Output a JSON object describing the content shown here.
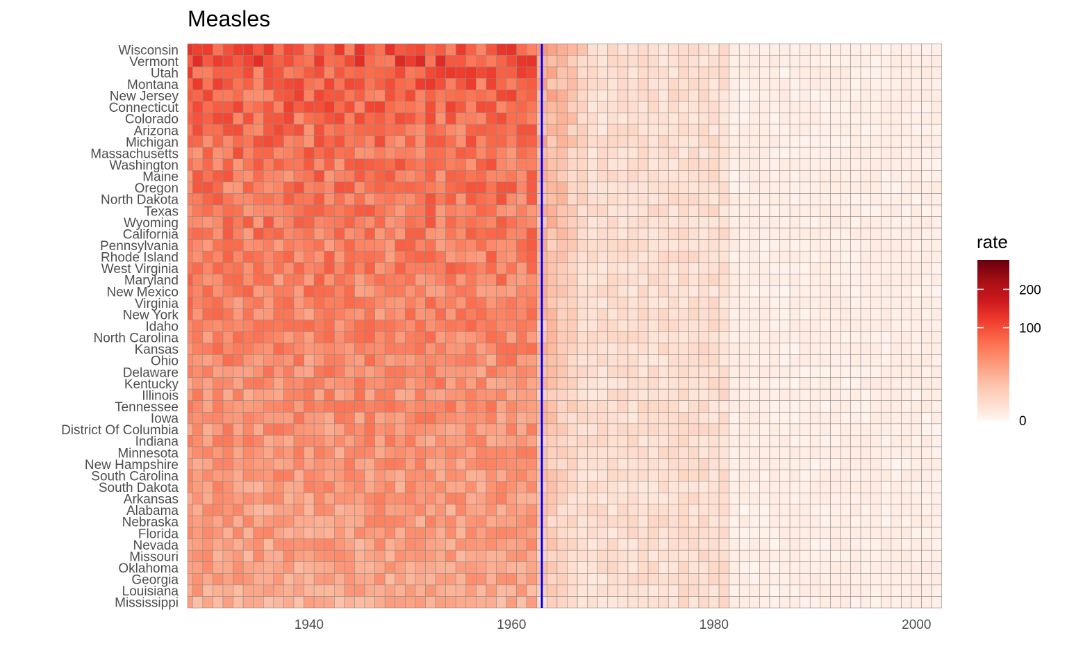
{
  "chart_data": {
    "type": "heatmap",
    "title": "Measles",
    "xlabel": "",
    "ylabel": "",
    "x_start": 1928,
    "x_end": 2002,
    "xlim": [
      1928,
      2003
    ],
    "x_ticks": [
      {
        "value": 1940,
        "label": "1940"
      },
      {
        "value": 1960,
        "label": "1960"
      },
      {
        "value": 1980,
        "label": "1980"
      },
      {
        "value": 2000,
        "label": "2000"
      }
    ],
    "vline": {
      "value": 1963,
      "color": "#0000ff"
    },
    "grid": false,
    "legend": {
      "title": "rate",
      "placement": "right",
      "max_value": 300,
      "ticks": [
        {
          "value": 0,
          "label": "0"
        },
        {
          "value": 100,
          "label": "100"
        },
        {
          "value": 200,
          "label": "200"
        }
      ],
      "colors": [
        "#fff5f0",
        "#fee0d2",
        "#fcbba1",
        "#fc9272",
        "#fb6a4a",
        "#ef3b2c",
        "#cb181d",
        "#a50f15",
        "#67000d"
      ]
    },
    "states": [
      {
        "name": "Wisconsin",
        "peak": 95
      },
      {
        "name": "Vermont",
        "peak": 100
      },
      {
        "name": "Utah",
        "peak": 88
      },
      {
        "name": "Montana",
        "peak": 85
      },
      {
        "name": "New Jersey",
        "peak": 80
      },
      {
        "name": "Connecticut",
        "peak": 78
      },
      {
        "name": "Colorado",
        "peak": 75
      },
      {
        "name": "Arizona",
        "peak": 72
      },
      {
        "name": "Michigan",
        "peak": 72
      },
      {
        "name": "Massachusetts",
        "peak": 70
      },
      {
        "name": "Washington",
        "peak": 70
      },
      {
        "name": "Maine",
        "peak": 68
      },
      {
        "name": "Oregon",
        "peak": 66
      },
      {
        "name": "North Dakota",
        "peak": 66
      },
      {
        "name": "Texas",
        "peak": 64
      },
      {
        "name": "Wyoming",
        "peak": 64
      },
      {
        "name": "California",
        "peak": 62
      },
      {
        "name": "Pennsylvania",
        "peak": 62
      },
      {
        "name": "Rhode Island",
        "peak": 60
      },
      {
        "name": "West Virginia",
        "peak": 60
      },
      {
        "name": "Maryland",
        "peak": 58
      },
      {
        "name": "New Mexico",
        "peak": 56
      },
      {
        "name": "Virginia",
        "peak": 55
      },
      {
        "name": "New York",
        "peak": 54
      },
      {
        "name": "Idaho",
        "peak": 54
      },
      {
        "name": "North Carolina",
        "peak": 53
      },
      {
        "name": "Kansas",
        "peak": 52
      },
      {
        "name": "Ohio",
        "peak": 50
      },
      {
        "name": "Delaware",
        "peak": 50
      },
      {
        "name": "Kentucky",
        "peak": 48
      },
      {
        "name": "Illinois",
        "peak": 48
      },
      {
        "name": "Tennessee",
        "peak": 48
      },
      {
        "name": "Iowa",
        "peak": 46
      },
      {
        "name": "District Of Columbia",
        "peak": 46
      },
      {
        "name": "Indiana",
        "peak": 44
      },
      {
        "name": "Minnesota",
        "peak": 44
      },
      {
        "name": "New Hampshire",
        "peak": 42
      },
      {
        "name": "South Carolina",
        "peak": 42
      },
      {
        "name": "South Dakota",
        "peak": 40
      },
      {
        "name": "Arkansas",
        "peak": 40
      },
      {
        "name": "Alabama",
        "peak": 38
      },
      {
        "name": "Nebraska",
        "peak": 38
      },
      {
        "name": "Florida",
        "peak": 36
      },
      {
        "name": "Nevada",
        "peak": 36
      },
      {
        "name": "Missouri",
        "peak": 34
      },
      {
        "name": "Oklahoma",
        "peak": 34
      },
      {
        "name": "Georgia",
        "peak": 32
      },
      {
        "name": "Louisiana",
        "peak": 30
      },
      {
        "name": "Mississippi",
        "peak": 26
      }
    ]
  }
}
